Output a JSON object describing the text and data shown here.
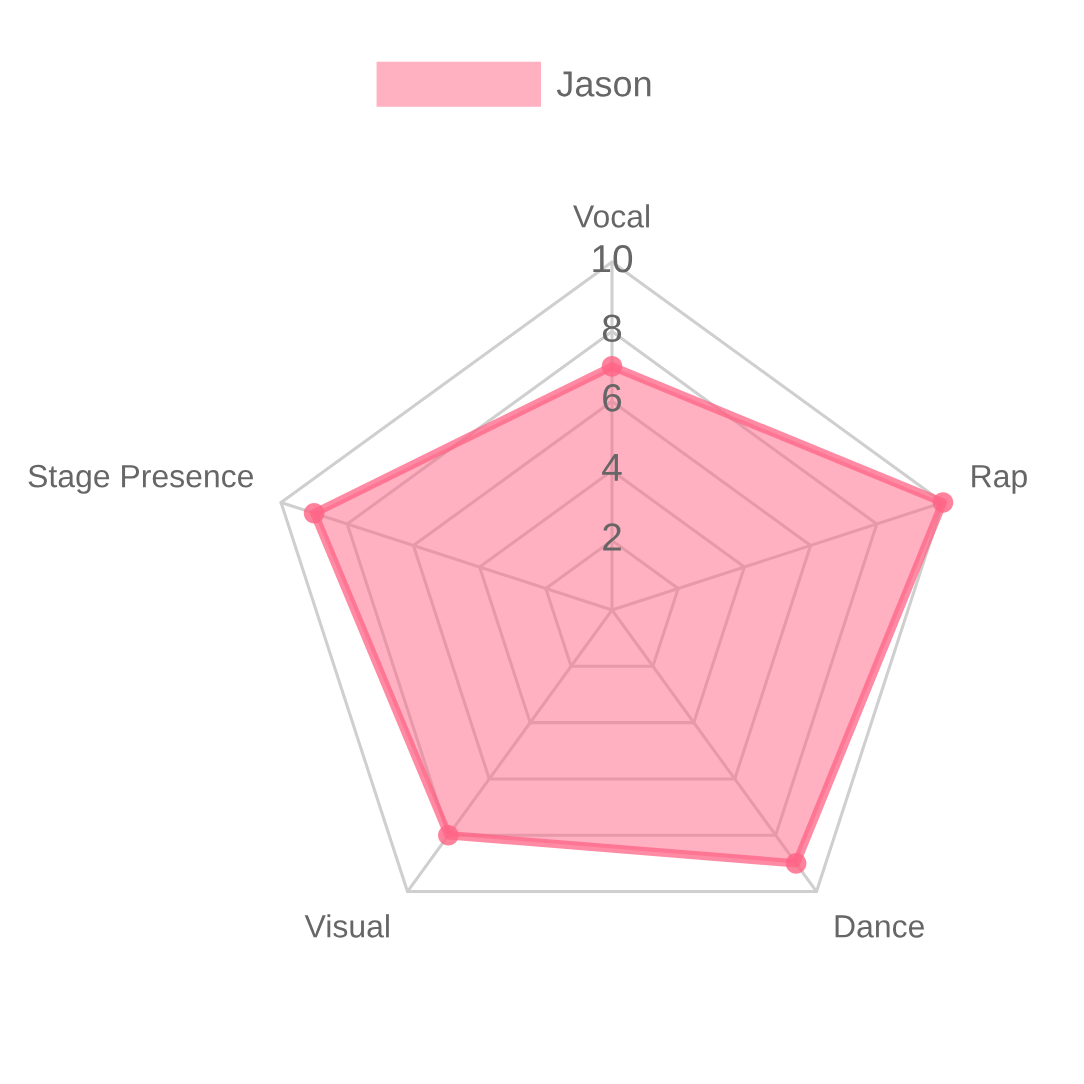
{
  "chart_data": {
    "type": "radar",
    "categories": [
      "Vocal",
      "Rap",
      "Dance",
      "Visual",
      "Stage Presence"
    ],
    "series": [
      {
        "name": "Jason",
        "color": "#ff6384",
        "values": [
          7,
          10,
          9,
          8,
          9
        ]
      }
    ],
    "ylim": [
      0,
      10
    ],
    "yticks": [
      2,
      4,
      6,
      8,
      10
    ],
    "grid": true,
    "legend": "top",
    "marker": "circle"
  }
}
